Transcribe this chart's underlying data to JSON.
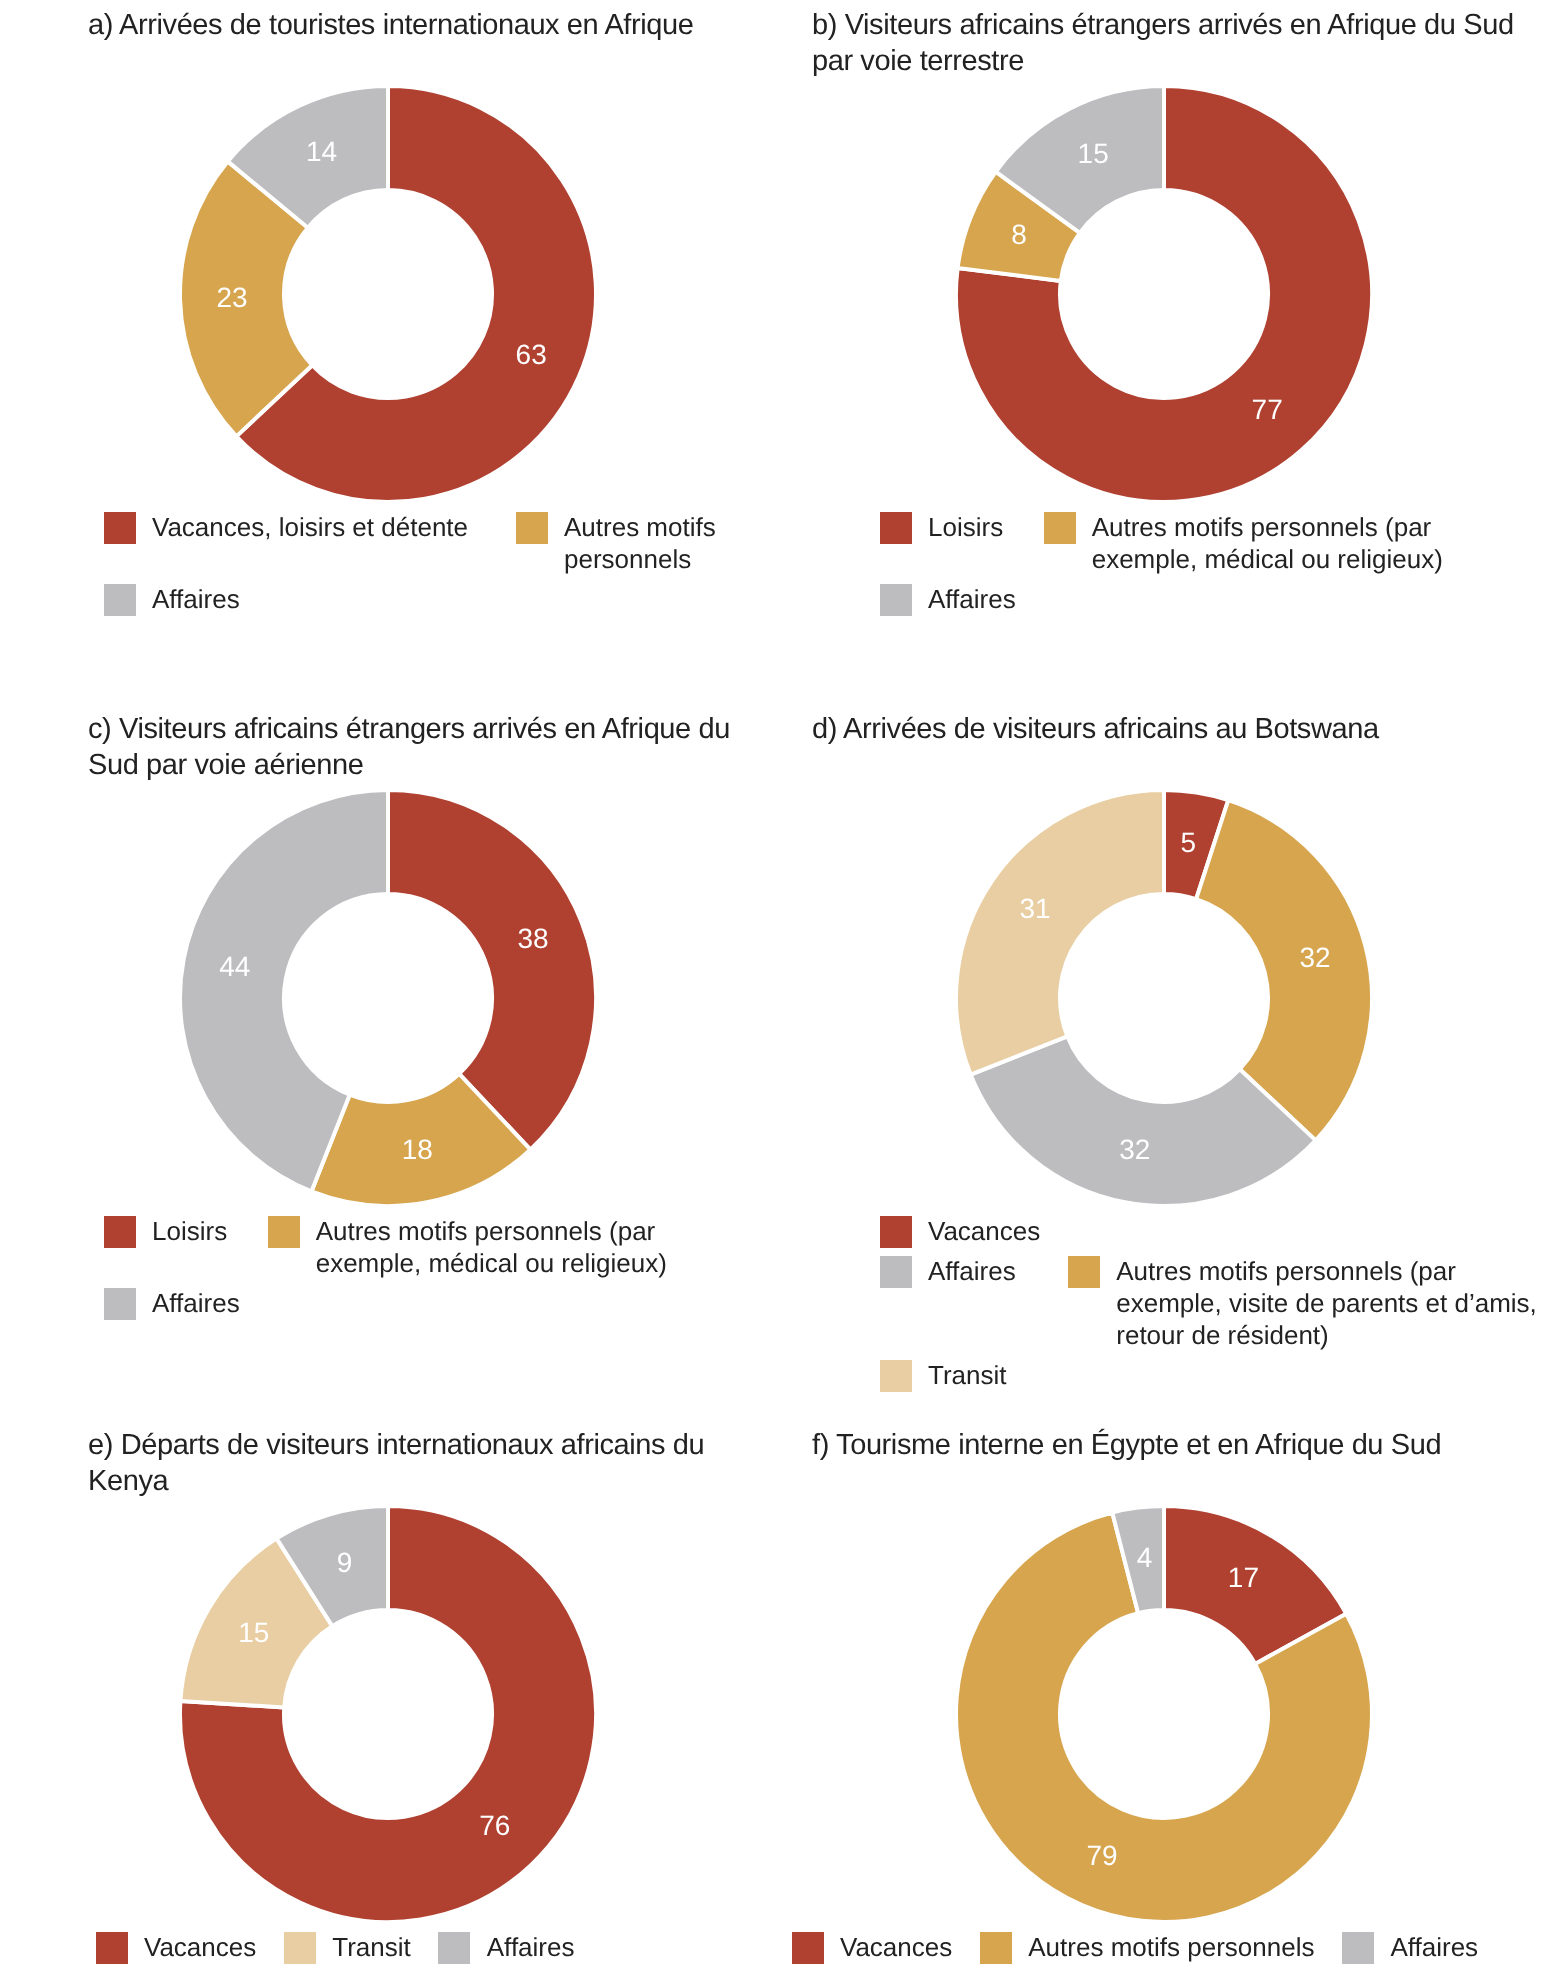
{
  "chart_data": [
    {
      "type": "donut",
      "title": "a) Arrivées de touristes internationaux en Afrique",
      "categories": [
        "Vacances, loisirs et détente",
        "Autres motifs personnels",
        "Affaires"
      ],
      "values": [
        63,
        23,
        14
      ],
      "colors": [
        "#b04131",
        "#d6a54e",
        "#bdbdc0"
      ],
      "data_labels": true,
      "legend": "bottom"
    },
    {
      "type": "donut",
      "title": "b) Visiteurs africains étrangers arrivés en Afrique du Sud par voie terrestre",
      "categories": [
        "Loisirs",
        "Autres motifs personnels (par exemple, médical ou religieux)",
        "Affaires"
      ],
      "values": [
        77,
        8,
        15
      ],
      "colors": [
        "#b04131",
        "#d6a54e",
        "#bdbdc0"
      ],
      "data_labels": true,
      "legend": "bottom"
    },
    {
      "type": "donut",
      "title": "c) Visiteurs africains étrangers arrivés en Afrique du Sud par voie aérienne",
      "categories": [
        "Loisirs",
        "Autres motifs personnels (par exemple, médical ou religieux)",
        "Affaires"
      ],
      "values": [
        38,
        18,
        44
      ],
      "colors": [
        "#b04131",
        "#d6a54e",
        "#bdbdc0"
      ],
      "data_labels": true,
      "legend": "bottom"
    },
    {
      "type": "donut",
      "title": "d) Arrivées de visiteurs africains au Botswana",
      "categories": [
        "Vacances",
        "Autres motifs personnels (par exemple, visite de parents et d’amis, retour de résident)",
        "Affaires",
        "Transit"
      ],
      "values": [
        5,
        32,
        32,
        31
      ],
      "colors": [
        "#b04131",
        "#d6a54e",
        "#bdbdc0",
        "#e8cea2"
      ],
      "data_labels": true,
      "legend": "bottom"
    },
    {
      "type": "donut",
      "title": "e) Départs de visiteurs internationaux africains du Kenya",
      "categories": [
        "Vacances",
        "Transit",
        "Affaires"
      ],
      "values": [
        76,
        15,
        9
      ],
      "colors": [
        "#b04131",
        "#e8cea2",
        "#bdbdc0"
      ],
      "data_labels": true,
      "legend": "bottom"
    },
    {
      "type": "donut",
      "title": "f) Tourisme interne en Égypte et en Afrique du Sud",
      "categories": [
        "Vacances",
        "Autres motifs personnels",
        "Affaires"
      ],
      "values": [
        17,
        79,
        4
      ],
      "colors": [
        "#b04131",
        "#d6a54e",
        "#bdbdc0"
      ],
      "data_labels": true,
      "legend": "bottom"
    }
  ]
}
